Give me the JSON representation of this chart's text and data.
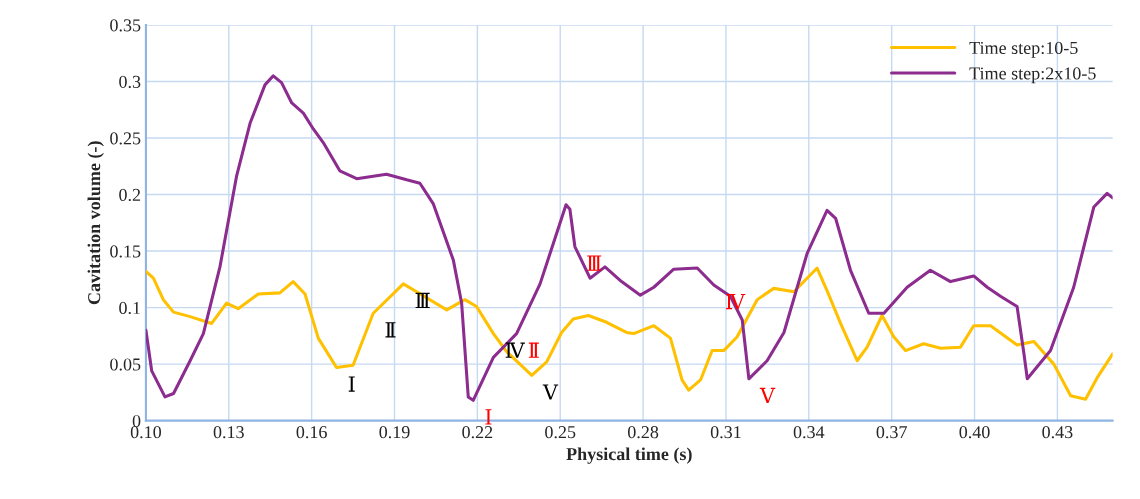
{
  "chart_data": {
    "type": "line",
    "xlabel": "Physical time (s)",
    "ylabel": "Cavitation volume (-)",
    "xlim": [
      0.1,
      0.45
    ],
    "ylim": [
      0,
      0.35
    ],
    "xticks": [
      {
        "value": 0.1,
        "label": "0.10"
      },
      0.13,
      0.16,
      0.19,
      0.22,
      0.25,
      0.28,
      0.31,
      0.34,
      0.37,
      {
        "value": 0.4,
        "label": "0.40"
      },
      0.43
    ],
    "yticks": [
      0,
      0.05,
      0.1,
      0.15,
      0.2,
      0.25,
      0.3,
      0.35
    ],
    "grid": true,
    "legend": "top right",
    "marker": "none",
    "line_style": "solid",
    "series": [
      {
        "name": "Time step:10-5",
        "color": "#ffc000",
        "x": [
          0.1,
          0.1027,
          0.1063,
          0.11,
          0.116,
          0.1238,
          0.1292,
          0.1334,
          0.1407,
          0.1485,
          0.1533,
          0.1576,
          0.1624,
          0.169,
          0.175,
          0.1823,
          0.1932,
          0.198,
          0.2089,
          0.2155,
          0.2197,
          0.2258,
          0.2306,
          0.2397,
          0.2451,
          0.2505,
          0.2547,
          0.2602,
          0.2668,
          0.274,
          0.2766,
          0.2839,
          0.2899,
          0.2941,
          0.2965,
          0.3008,
          0.305,
          0.3092,
          0.314,
          0.3213,
          0.3273,
          0.3346,
          0.343,
          0.3466,
          0.3515,
          0.3575,
          0.3611,
          0.3665,
          0.3708,
          0.375,
          0.3816,
          0.3877,
          0.3949,
          0.3997,
          0.4058,
          0.4154,
          0.4215,
          0.4287,
          0.4348,
          0.4402,
          0.4444,
          0.45
        ],
        "values": [
          0.132,
          0.126,
          0.107,
          0.096,
          0.092,
          0.086,
          0.104,
          0.099,
          0.112,
          0.113,
          0.123,
          0.112,
          0.073,
          0.047,
          0.049,
          0.095,
          0.121,
          0.114,
          0.098,
          0.107,
          0.101,
          0.077,
          0.061,
          0.04,
          0.052,
          0.078,
          0.09,
          0.093,
          0.087,
          0.078,
          0.077,
          0.084,
          0.073,
          0.036,
          0.027,
          0.036,
          0.062,
          0.062,
          0.074,
          0.107,
          0.117,
          0.114,
          0.135,
          0.115,
          0.086,
          0.053,
          0.065,
          0.093,
          0.074,
          0.062,
          0.068,
          0.064,
          0.065,
          0.084,
          0.084,
          0.067,
          0.07,
          0.05,
          0.022,
          0.019,
          0.038,
          0.059
        ]
      },
      {
        "name": "Time step:2x10-5",
        "color": "#8b2c8e",
        "x": [
          0.1,
          0.1021,
          0.1069,
          0.11,
          0.116,
          0.1208,
          0.1268,
          0.1328,
          0.1377,
          0.1431,
          0.1461,
          0.1491,
          0.1528,
          0.157,
          0.1606,
          0.1642,
          0.1702,
          0.1763,
          0.1871,
          0.1944,
          0.1992,
          0.204,
          0.2113,
          0.2143,
          0.2167,
          0.2185,
          0.2258,
          0.2342,
          0.2427,
          0.2521,
          0.2535,
          0.2553,
          0.2608,
          0.2662,
          0.2722,
          0.279,
          0.2839,
          0.2911,
          0.2996,
          0.3056,
          0.3116,
          0.3159,
          0.3183,
          0.3249,
          0.331,
          0.3394,
          0.3466,
          0.3497,
          0.3551,
          0.3617,
          0.3672,
          0.3756,
          0.384,
          0.3913,
          0.3997,
          0.4046,
          0.4094,
          0.4154,
          0.4179,
          0.4191,
          0.4275,
          0.4359,
          0.4432,
          0.448,
          0.45
        ],
        "values": [
          0.08,
          0.044,
          0.021,
          0.024,
          0.053,
          0.077,
          0.136,
          0.216,
          0.263,
          0.297,
          0.305,
          0.299,
          0.281,
          0.272,
          0.258,
          0.246,
          0.221,
          0.214,
          0.218,
          0.213,
          0.21,
          0.192,
          0.142,
          0.104,
          0.021,
          0.018,
          0.056,
          0.077,
          0.121,
          0.191,
          0.187,
          0.154,
          0.126,
          0.136,
          0.123,
          0.111,
          0.118,
          0.134,
          0.135,
          0.12,
          0.11,
          0.089,
          0.037,
          0.053,
          0.078,
          0.148,
          0.186,
          0.179,
          0.133,
          0.095,
          0.095,
          0.118,
          0.133,
          0.123,
          0.128,
          0.118,
          0.11,
          0.101,
          0.059,
          0.037,
          0.062,
          0.118,
          0.189,
          0.201,
          0.197
        ]
      }
    ],
    "annotations": [
      {
        "text": "Ⅰ",
        "x": 0.169,
        "y": 0.047
      },
      {
        "text": "Ⅱ",
        "x": 0.1823,
        "y": 0.095
      },
      {
        "text": "Ⅲ",
        "x": 0.1932,
        "y": 0.121
      },
      {
        "text": "Ⅳ",
        "x": 0.2258,
        "y": 0.077
      },
      {
        "text": "Ⅴ",
        "x": 0.2397,
        "y": 0.04
      },
      {
        "text": "Ⅰ",
        "x": 0.2185,
        "y": 0.018
      },
      {
        "text": "Ⅱ",
        "x": 0.2342,
        "y": 0.077
      },
      {
        "text": "Ⅲ",
        "x": 0.2553,
        "y": 0.154
      },
      {
        "text": "Ⅳ",
        "x": 0.3056,
        "y": 0.12
      },
      {
        "text": "Ⅴ",
        "x": 0.3183,
        "y": 0.037
      }
    ]
  }
}
